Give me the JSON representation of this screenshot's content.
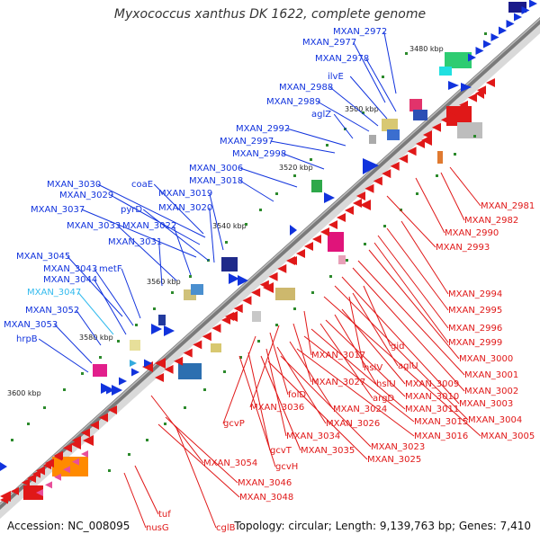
{
  "title": "Myxococcus xanthus DK 1622, complete genome",
  "footer": {
    "accession": "Accession: NC_008095",
    "summary": "Topology: circular; Length: 9,139,763 bp; Genes: 7,410"
  },
  "ticks": [
    "3480 kbp",
    "3500 kbp",
    "3520 kbp",
    "3540 kbp",
    "3560 kbp",
    "3580 kbp",
    "3600 kbp"
  ],
  "blue_labels": [
    "MXAN_2972",
    "MXAN_2977",
    "MXAN_2978",
    "ilvE",
    "MXAN_2988",
    "MXAN_2989",
    "aglZ",
    "MXAN_2992",
    "MXAN_2997",
    "MXAN_2998",
    "MXAN_3006",
    "coaE",
    "MXAN_3018",
    "MXAN_3030",
    "MXAN_3029",
    "MXAN_3019",
    "MXAN_3037",
    "pyrD",
    "MXAN_3020",
    "MXAN_3033",
    "MXAN_3022",
    "MXAN_3031",
    "MXAN_3045",
    "MXAN_3043",
    "metF",
    "MXAN_3044",
    "MXAN_3047",
    "MXAN_3052",
    "MXAN_3053",
    "hrpB"
  ],
  "red_labels": [
    "MXAN_2981",
    "MXAN_2982",
    "MXAN_2990",
    "MXAN_2993",
    "MXAN_2994",
    "MXAN_2995",
    "MXAN_2996",
    "MXAN_2999",
    "MXAN_3000",
    "MXAN_3001",
    "MXAN_3002",
    "MXAN_3003",
    "MXAN_3004",
    "MXAN_3005",
    "gid",
    "aglU",
    "MXAN_3017",
    "hslV",
    "MXAN_3009",
    "hslU",
    "MXAN_3010",
    "argD",
    "MXAN_3011",
    "MXAN_3027",
    "MXAN_3015",
    "MXAN_3036",
    "MXAN_3024",
    "MXAN_3016",
    "folD",
    "MXAN_3026",
    "gcvP",
    "MXAN_3034",
    "MXAN_3023",
    "MXAN_3035",
    "gcvT",
    "MXAN_3025",
    "gcvH",
    "MXAN_3054",
    "MXAN_3046",
    "MXAN_3048",
    "tuf",
    "nusG",
    "cglB"
  ]
}
